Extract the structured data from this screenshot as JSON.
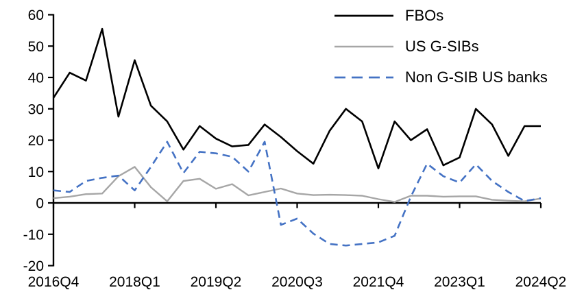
{
  "chart_data": {
    "type": "line",
    "title": "",
    "xlabel": "",
    "ylabel": "",
    "grid": false,
    "legend_position": "top-right",
    "ylim": [
      -20,
      60
    ],
    "y_ticks": [
      60,
      50,
      40,
      30,
      20,
      10,
      0,
      -10,
      -20
    ],
    "categories": [
      "2016Q4",
      "2017Q1",
      "2017Q2",
      "2017Q3",
      "2017Q4",
      "2018Q1",
      "2018Q2",
      "2018Q3",
      "2018Q4",
      "2019Q1",
      "2019Q2",
      "2019Q3",
      "2019Q4",
      "2020Q1",
      "2020Q2",
      "2020Q3",
      "2020Q4",
      "2021Q1",
      "2021Q2",
      "2021Q3",
      "2021Q4",
      "2022Q1",
      "2022Q2",
      "2022Q3",
      "2022Q4",
      "2023Q1",
      "2023Q2",
      "2023Q3",
      "2023Q4",
      "2024Q1",
      "2024Q2"
    ],
    "x_tick_indices": [
      0,
      5,
      10,
      15,
      20,
      25,
      30
    ],
    "x_tick_labels": [
      "2016Q4",
      "2018Q1",
      "2019Q2",
      "2020Q3",
      "2021Q4",
      "2023Q1",
      "2024Q2"
    ],
    "series": [
      {
        "name": "FBOs",
        "color": "#000000",
        "style": "solid",
        "values": [
          33.5,
          41.5,
          39,
          55.5,
          27.5,
          45.5,
          31,
          26,
          17,
          24.5,
          20.5,
          18,
          18.5,
          25,
          21,
          16.5,
          12.5,
          23,
          30,
          26,
          11,
          26,
          20,
          23.5,
          12,
          14.5,
          30,
          25,
          15,
          24.5,
          24.5
        ]
      },
      {
        "name": "US G-SIBs",
        "color": "#A6A6A6",
        "style": "solid",
        "values": [
          1.5,
          2,
          2.8,
          3,
          8.5,
          11.5,
          5,
          0.5,
          7,
          7.7,
          4.5,
          6,
          2.4,
          3.5,
          4.6,
          3,
          2.5,
          2.6,
          2.5,
          2.3,
          1.2,
          0.3,
          2.3,
          2.3,
          2,
          2.1,
          2.1,
          1,
          0.7,
          0.5,
          1.4
        ]
      },
      {
        "name": "Non G-SIB US banks",
        "color": "#4472C4",
        "style": "dashed",
        "values": [
          4,
          3.5,
          7,
          8,
          8.7,
          4,
          11.5,
          19.5,
          9.5,
          16.3,
          15.8,
          14.7,
          10,
          19.5,
          -7,
          -5,
          -9.8,
          -13.1,
          -13.6,
          -13.1,
          -12.6,
          -10.5,
          2,
          12.5,
          8.5,
          6.5,
          12.3,
          7,
          3.5,
          0.6,
          1.5
        ]
      }
    ]
  }
}
